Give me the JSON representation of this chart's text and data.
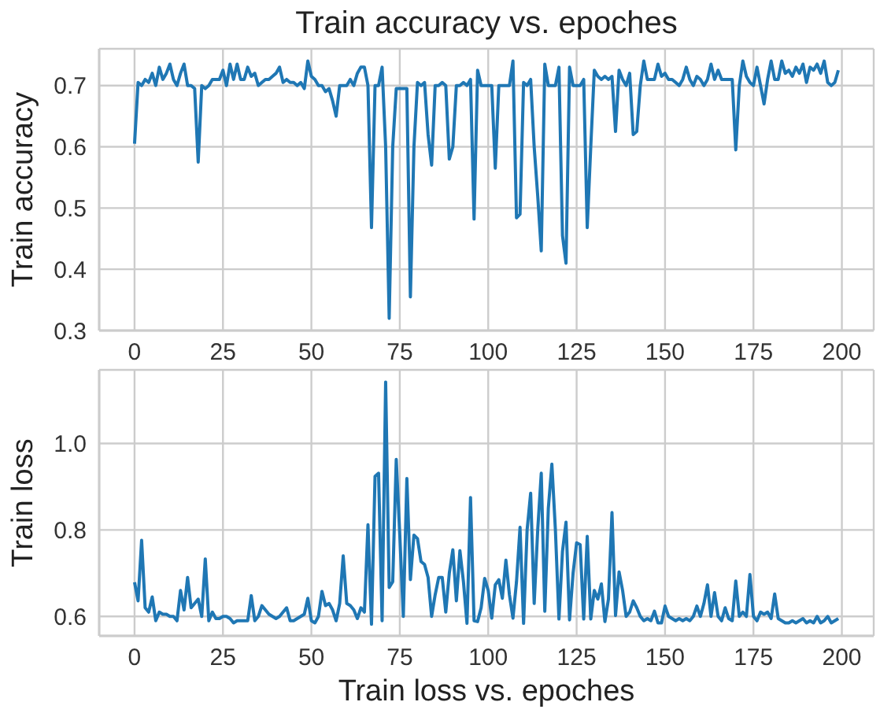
{
  "chart_data": [
    {
      "type": "line",
      "title": "Train accuracy vs. epoches",
      "ylabel": "Train accuracy",
      "grid": true,
      "x": [
        0,
        1,
        2,
        3,
        4,
        5,
        6,
        7,
        8,
        9,
        10,
        11,
        12,
        13,
        14,
        15,
        16,
        17,
        18,
        19,
        20,
        21,
        22,
        23,
        24,
        25,
        26,
        27,
        28,
        29,
        30,
        31,
        32,
        33,
        34,
        35,
        36,
        37,
        38,
        39,
        40,
        41,
        42,
        43,
        44,
        45,
        46,
        47,
        48,
        49,
        50,
        51,
        52,
        53,
        54,
        55,
        56,
        57,
        58,
        59,
        60,
        61,
        62,
        63,
        64,
        65,
        66,
        67,
        68,
        69,
        70,
        71,
        72,
        73,
        74,
        75,
        76,
        77,
        78,
        79,
        80,
        81,
        82,
        83,
        84,
        85,
        86,
        87,
        88,
        89,
        90,
        91,
        92,
        93,
        94,
        95,
        96,
        97,
        98,
        99,
        100,
        101,
        102,
        103,
        104,
        105,
        106,
        107,
        108,
        109,
        110,
        111,
        112,
        113,
        114,
        115,
        116,
        117,
        118,
        119,
        120,
        121,
        122,
        123,
        124,
        125,
        126,
        127,
        128,
        129,
        130,
        131,
        132,
        133,
        134,
        135,
        136,
        137,
        138,
        139,
        140,
        141,
        142,
        143,
        144,
        145,
        146,
        147,
        148,
        149,
        150,
        151,
        152,
        153,
        154,
        155,
        156,
        157,
        158,
        159,
        160,
        161,
        162,
        163,
        164,
        165,
        166,
        167,
        168,
        169,
        170,
        171,
        172,
        173,
        174,
        175,
        176,
        177,
        178,
        179,
        180,
        181,
        182,
        183,
        184,
        185,
        186,
        187,
        188,
        189,
        190,
        191,
        192,
        193,
        194,
        195,
        196,
        197,
        198,
        199
      ],
      "xlim": [
        -10,
        209
      ],
      "xticks": [
        0,
        25,
        50,
        75,
        100,
        125,
        150,
        175,
        200
      ],
      "ylim": [
        0.3,
        0.76
      ],
      "yticks": [
        0.3,
        0.4,
        0.5,
        0.6,
        0.7
      ],
      "series": [
        {
          "color": "#1f77b4",
          "values": [
            0.605,
            0.705,
            0.7,
            0.71,
            0.705,
            0.72,
            0.7,
            0.73,
            0.71,
            0.72,
            0.735,
            0.71,
            0.7,
            0.72,
            0.735,
            0.7,
            0.7,
            0.695,
            0.575,
            0.7,
            0.695,
            0.7,
            0.71,
            0.71,
            0.71,
            0.725,
            0.7,
            0.735,
            0.71,
            0.735,
            0.71,
            0.71,
            0.73,
            0.715,
            0.72,
            0.7,
            0.705,
            0.71,
            0.71,
            0.715,
            0.72,
            0.73,
            0.705,
            0.71,
            0.705,
            0.705,
            0.7,
            0.705,
            0.695,
            0.74,
            0.715,
            0.71,
            0.7,
            0.7,
            0.69,
            0.695,
            0.675,
            0.65,
            0.7,
            0.7,
            0.7,
            0.71,
            0.7,
            0.72,
            0.73,
            0.73,
            0.7,
            0.468,
            0.7,
            0.7,
            0.73,
            0.6,
            0.32,
            0.6,
            0.695,
            0.695,
            0.695,
            0.695,
            0.355,
            0.6,
            0.705,
            0.7,
            0.705,
            0.62,
            0.57,
            0.7,
            0.7,
            0.705,
            0.7,
            0.58,
            0.6,
            0.7,
            0.7,
            0.705,
            0.7,
            0.71,
            0.482,
            0.725,
            0.7,
            0.7,
            0.7,
            0.7,
            0.565,
            0.7,
            0.7,
            0.7,
            0.7,
            0.74,
            0.484,
            0.49,
            0.705,
            0.7,
            0.71,
            0.6,
            0.52,
            0.43,
            0.735,
            0.7,
            0.7,
            0.7,
            0.73,
            0.455,
            0.41,
            0.73,
            0.7,
            0.7,
            0.7,
            0.71,
            0.468,
            0.6,
            0.725,
            0.715,
            0.71,
            0.715,
            0.71,
            0.715,
            0.625,
            0.725,
            0.71,
            0.7,
            0.72,
            0.62,
            0.625,
            0.7,
            0.74,
            0.71,
            0.71,
            0.71,
            0.735,
            0.715,
            0.72,
            0.71,
            0.71,
            0.705,
            0.7,
            0.71,
            0.73,
            0.71,
            0.7,
            0.715,
            0.71,
            0.7,
            0.71,
            0.735,
            0.71,
            0.725,
            0.71,
            0.71,
            0.71,
            0.71,
            0.595,
            0.7,
            0.74,
            0.715,
            0.705,
            0.7,
            0.73,
            0.7,
            0.67,
            0.71,
            0.74,
            0.71,
            0.71,
            0.74,
            0.72,
            0.725,
            0.715,
            0.73,
            0.72,
            0.735,
            0.705,
            0.73,
            0.725,
            0.735,
            0.72,
            0.74,
            0.705,
            0.7,
            0.705,
            0.725
          ]
        }
      ]
    },
    {
      "type": "line",
      "xlabel": "Train loss vs. epoches",
      "ylabel": "Train loss",
      "grid": true,
      "x": [
        0,
        1,
        2,
        3,
        4,
        5,
        6,
        7,
        8,
        9,
        10,
        11,
        12,
        13,
        14,
        15,
        16,
        17,
        18,
        19,
        20,
        21,
        22,
        23,
        24,
        25,
        26,
        27,
        28,
        29,
        30,
        31,
        32,
        33,
        34,
        35,
        36,
        37,
        38,
        39,
        40,
        41,
        42,
        43,
        44,
        45,
        46,
        47,
        48,
        49,
        50,
        51,
        52,
        53,
        54,
        55,
        56,
        57,
        58,
        59,
        60,
        61,
        62,
        63,
        64,
        65,
        66,
        67,
        68,
        69,
        70,
        71,
        72,
        73,
        74,
        75,
        76,
        77,
        78,
        79,
        80,
        81,
        82,
        83,
        84,
        85,
        86,
        87,
        88,
        89,
        90,
        91,
        92,
        93,
        94,
        95,
        96,
        97,
        98,
        99,
        100,
        101,
        102,
        103,
        104,
        105,
        106,
        107,
        108,
        109,
        110,
        111,
        112,
        113,
        114,
        115,
        116,
        117,
        118,
        119,
        120,
        121,
        122,
        123,
        124,
        125,
        126,
        127,
        128,
        129,
        130,
        131,
        132,
        133,
        134,
        135,
        136,
        137,
        138,
        139,
        140,
        141,
        142,
        143,
        144,
        145,
        146,
        147,
        148,
        149,
        150,
        151,
        152,
        153,
        154,
        155,
        156,
        157,
        158,
        159,
        160,
        161,
        162,
        163,
        164,
        165,
        166,
        167,
        168,
        169,
        170,
        171,
        172,
        173,
        174,
        175,
        176,
        177,
        178,
        179,
        180,
        181,
        182,
        183,
        184,
        185,
        186,
        187,
        188,
        189,
        190,
        191,
        192,
        193,
        194,
        195,
        196,
        197,
        198,
        199
      ],
      "xlim": [
        -10,
        209
      ],
      "xticks": [
        0,
        25,
        50,
        75,
        100,
        125,
        150,
        175,
        200
      ],
      "ylim": [
        0.555,
        1.17
      ],
      "yticks": [
        0.6,
        0.8,
        {
          "value": 1,
          "label": "1.0"
        }
      ],
      "series": [
        {
          "color": "#1f77b4",
          "values": [
            0.679,
            0.636,
            0.776,
            0.62,
            0.61,
            0.645,
            0.59,
            0.61,
            0.605,
            0.605,
            0.6,
            0.6,
            0.59,
            0.66,
            0.615,
            0.69,
            0.62,
            0.63,
            0.64,
            0.6,
            0.733,
            0.59,
            0.61,
            0.595,
            0.595,
            0.6,
            0.6,
            0.595,
            0.585,
            0.59,
            0.59,
            0.59,
            0.59,
            0.648,
            0.59,
            0.6,
            0.625,
            0.615,
            0.605,
            0.6,
            0.595,
            0.6,
            0.61,
            0.62,
            0.59,
            0.59,
            0.595,
            0.6,
            0.605,
            0.642,
            0.59,
            0.585,
            0.6,
            0.658,
            0.625,
            0.63,
            0.615,
            0.59,
            0.63,
            0.74,
            0.63,
            0.625,
            0.615,
            0.595,
            0.62,
            0.61,
            0.812,
            0.582,
            0.924,
            0.931,
            0.59,
            1.142,
            0.667,
            0.68,
            0.963,
            0.788,
            0.6,
            0.919,
            0.685,
            0.788,
            0.78,
            0.727,
            0.72,
            0.69,
            0.6,
            0.65,
            0.69,
            0.69,
            0.61,
            0.7,
            0.754,
            0.636,
            0.752,
            0.68,
            0.584,
            0.875,
            0.59,
            0.588,
            0.62,
            0.688,
            0.66,
            0.596,
            0.673,
            0.685,
            0.642,
            0.73,
            0.65,
            0.596,
            0.68,
            0.806,
            0.584,
            0.8,
            0.885,
            0.63,
            0.8,
            0.931,
            0.612,
            0.85,
            0.952,
            0.8,
            0.594,
            0.75,
            0.818,
            0.592,
            0.7,
            0.77,
            0.766,
            0.594,
            0.785,
            0.594,
            0.66,
            0.64,
            0.675,
            0.588,
            0.64,
            0.84,
            0.602,
            0.703,
            0.66,
            0.6,
            0.61,
            0.636,
            0.62,
            0.6,
            0.59,
            0.595,
            0.59,
            0.612,
            0.585,
            0.585,
            0.624,
            0.6,
            0.595,
            0.59,
            0.595,
            0.59,
            0.595,
            0.59,
            0.6,
            0.624,
            0.6,
            0.63,
            0.673,
            0.6,
            0.655,
            0.6,
            0.59,
            0.62,
            0.595,
            0.59,
            0.682,
            0.6,
            0.61,
            0.6,
            0.697,
            0.6,
            0.59,
            0.61,
            0.605,
            0.61,
            0.595,
            0.652,
            0.595,
            0.59,
            0.585,
            0.585,
            0.59,
            0.585,
            0.59,
            0.595,
            0.585,
            0.59,
            0.585,
            0.6,
            0.585,
            0.59,
            0.6,
            0.585,
            0.59,
            0.595
          ]
        }
      ]
    }
  ]
}
